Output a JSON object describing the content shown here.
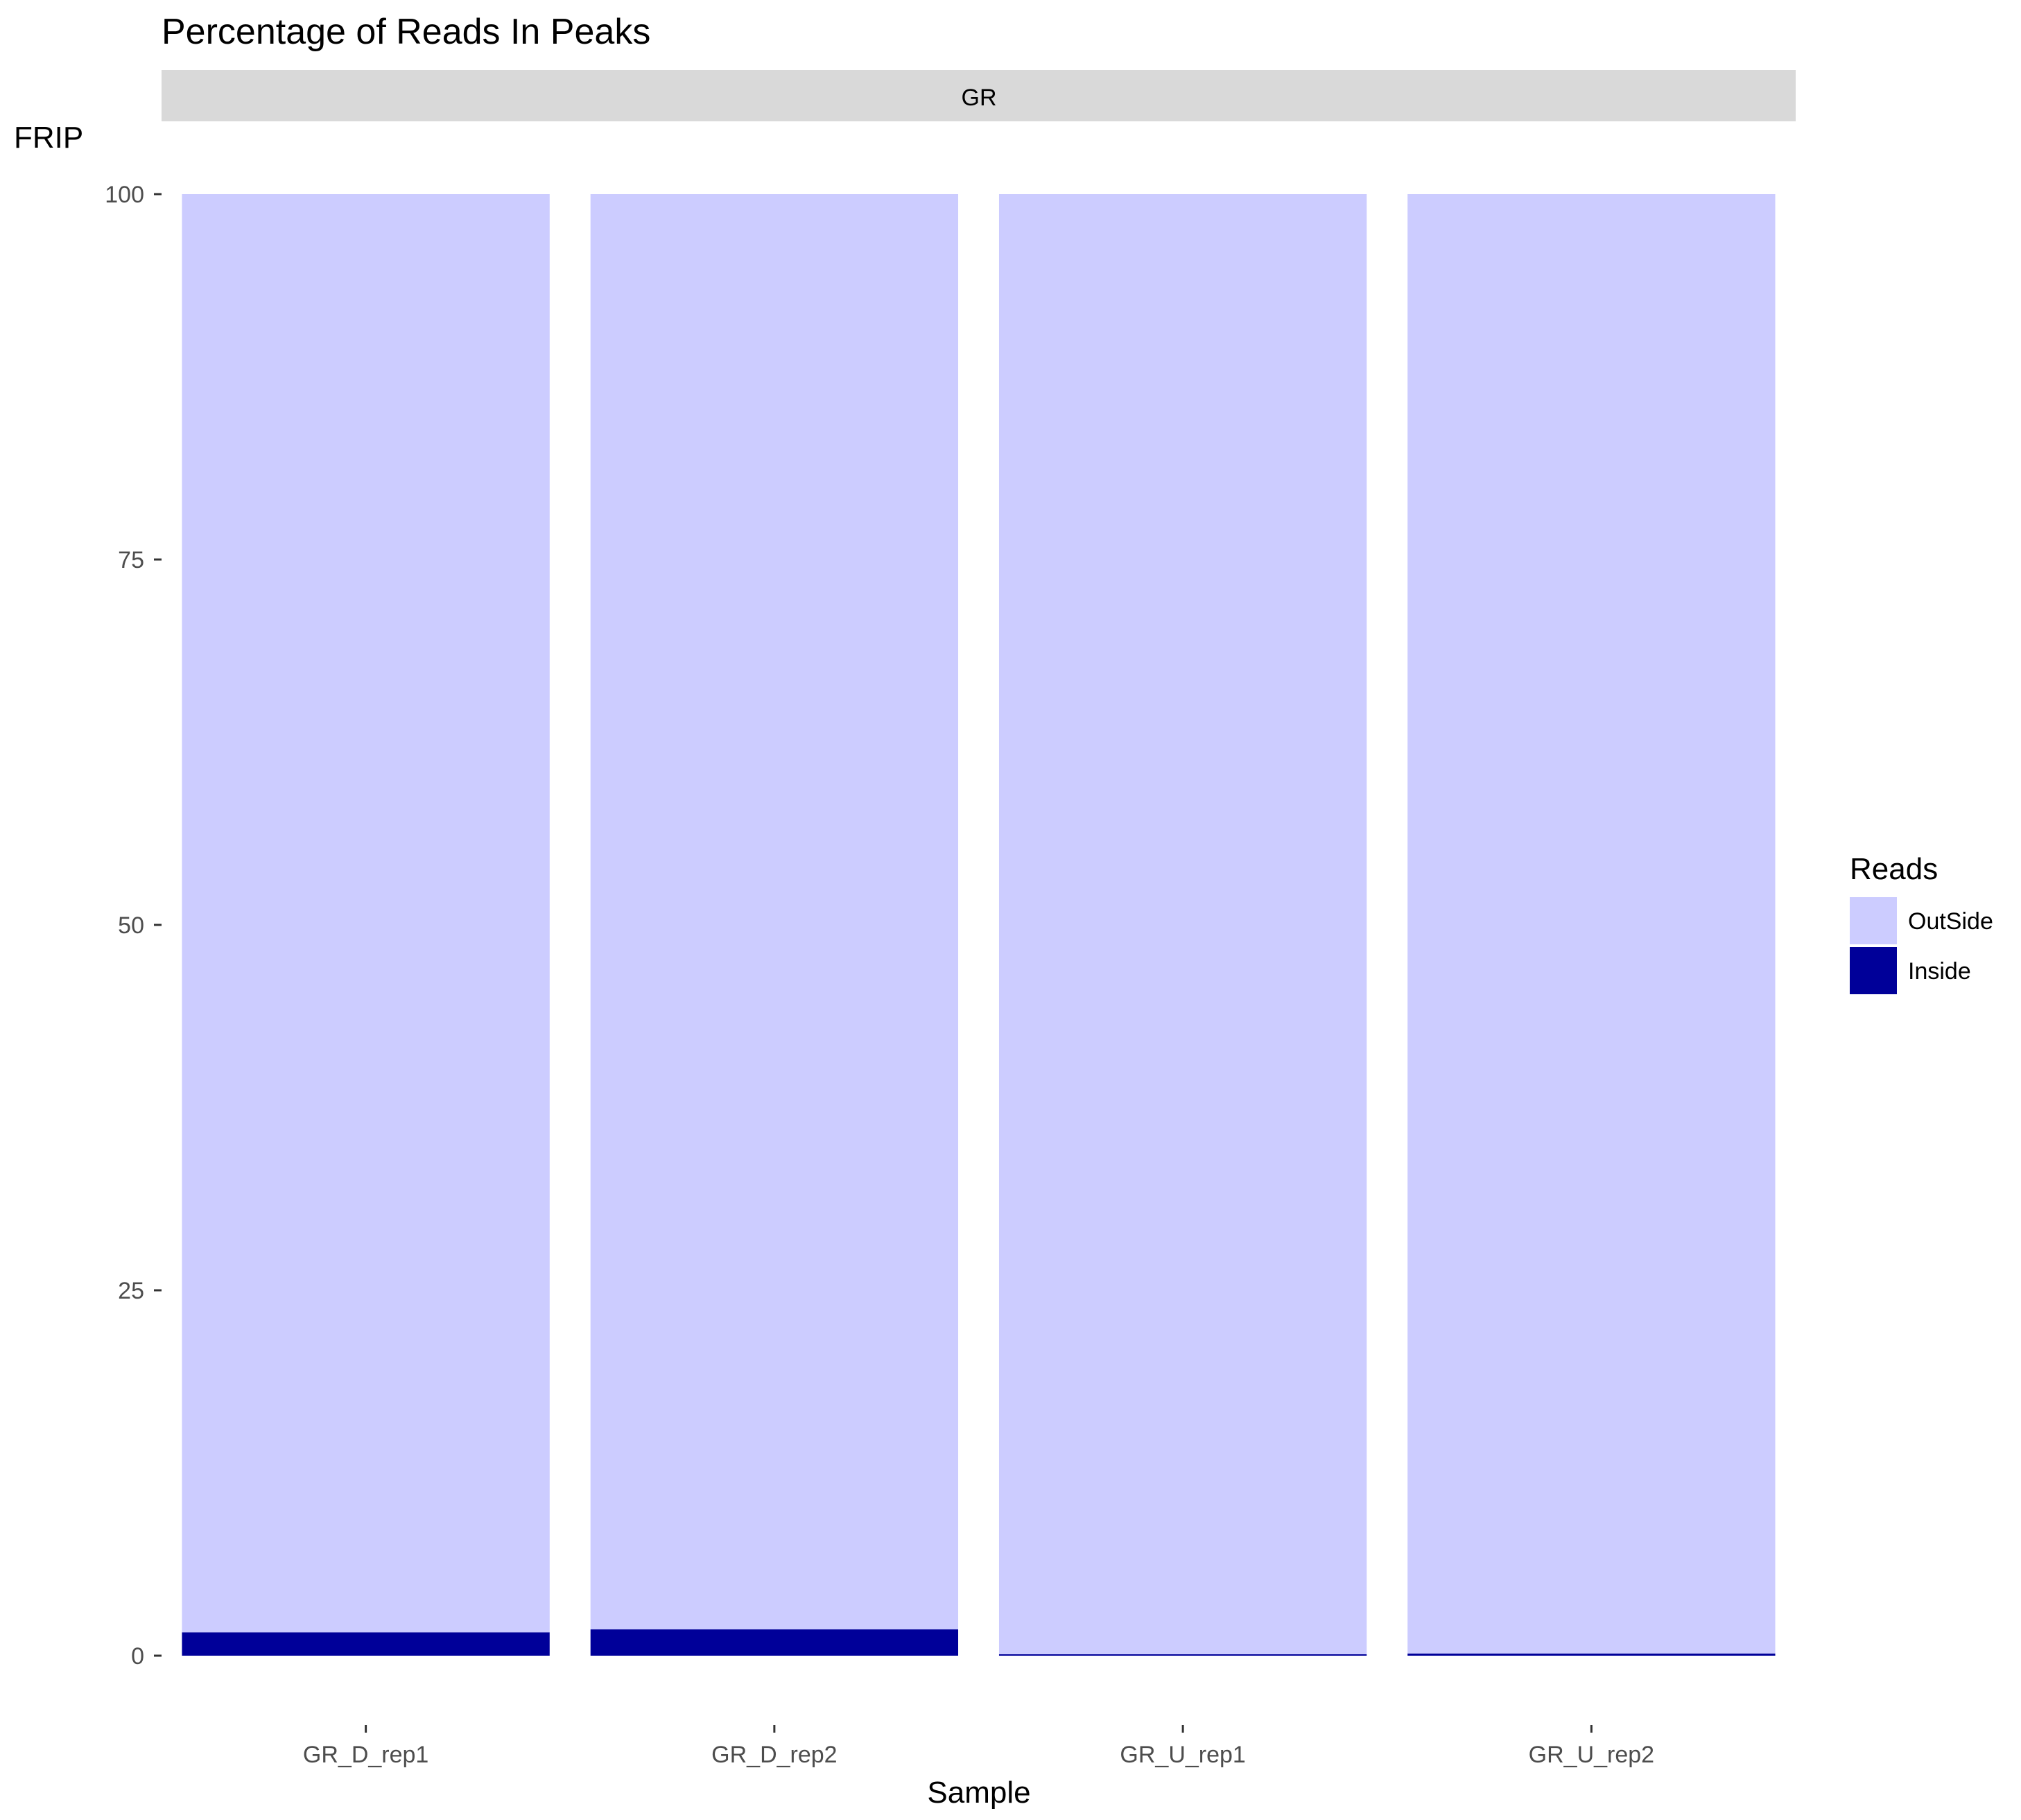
{
  "chart_data": {
    "type": "bar",
    "stacked": true,
    "title": "Percentage of Reads In Peaks",
    "facet_label": "GR",
    "xlabel": "Sample",
    "ylabel": "FRIP",
    "categories": [
      "GR_D_rep1",
      "GR_D_rep2",
      "GR_U_rep1",
      "GR_U_rep2"
    ],
    "series": [
      {
        "name": "Inside",
        "color": "#000099",
        "values": [
          1.6,
          1.8,
          0.1,
          0.15
        ]
      },
      {
        "name": "OutSide",
        "color": "#ccccff",
        "values": [
          98.4,
          98.2,
          99.9,
          99.85
        ]
      }
    ],
    "ylim": [
      0,
      100
    ],
    "yticks": [
      "0",
      "25",
      "50",
      "75",
      "100"
    ],
    "grid": false,
    "legend": {
      "title": "Reads",
      "placement": "right",
      "entries": [
        {
          "label": "OutSide",
          "color": "#ccccff"
        },
        {
          "label": "Inside",
          "color": "#000099"
        }
      ]
    },
    "facet_strip_color": "#d9d9d9"
  }
}
